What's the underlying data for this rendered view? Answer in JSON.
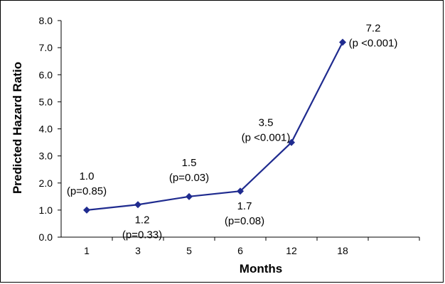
{
  "chart_data": {
    "type": "line",
    "xlabel": "Months",
    "ylabel": "Predicted Hazard Ratio",
    "categories": [
      "1",
      "3",
      "5",
      "6",
      "12",
      "18"
    ],
    "series": [
      {
        "values": [
          1.0,
          1.2,
          1.5,
          1.7,
          3.5,
          7.2
        ],
        "color": "#1f2b8f",
        "marker": "diamond"
      }
    ],
    "data_labels": [
      {
        "value": "1.0",
        "p": "(p=0.85)",
        "placement": "above"
      },
      {
        "value": "1.2",
        "p": "(p=0.33)",
        "placement": "below"
      },
      {
        "value": "1.5",
        "p": "(p=0.03)",
        "placement": "above"
      },
      {
        "value": "1.7",
        "p": "(p=0.08)",
        "placement": "below"
      },
      {
        "value": "3.5",
        "p": "(p <0.001)",
        "placement": "above-left"
      },
      {
        "value": "7.2",
        "p": "(p <0.001)",
        "placement": "right"
      }
    ],
    "ylim": [
      0.0,
      8.0
    ],
    "yticks": [
      "0.0",
      "1.0",
      "2.0",
      "3.0",
      "4.0",
      "5.0",
      "6.0",
      "7.0",
      "8.0"
    ],
    "grid": false,
    "legend": "none"
  }
}
